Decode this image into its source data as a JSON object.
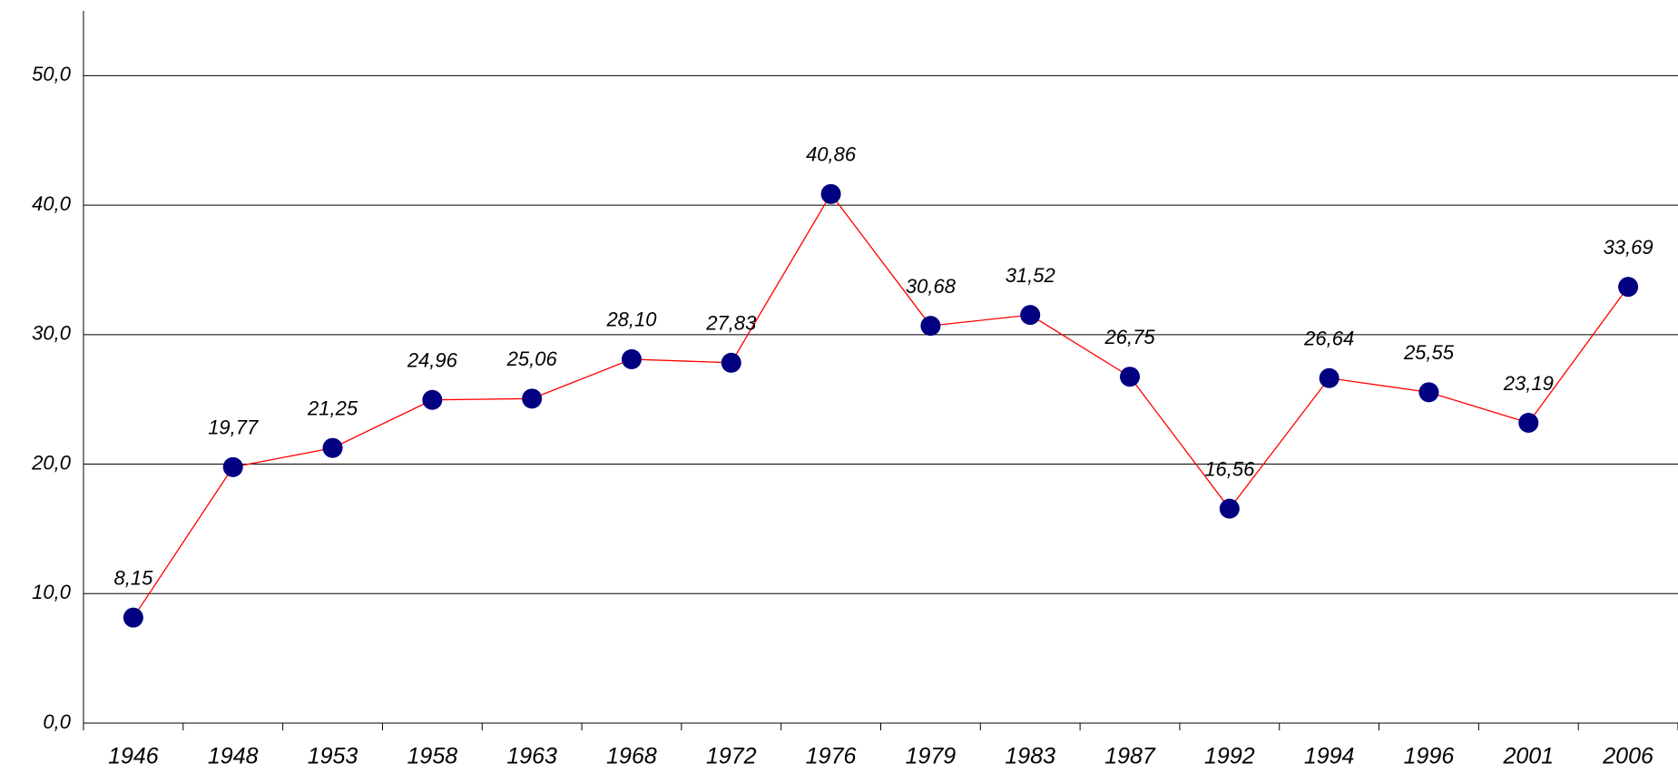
{
  "chart_data": {
    "type": "line",
    "categories": [
      "1946",
      "1948",
      "1953",
      "1958",
      "1963",
      "1968",
      "1972",
      "1976",
      "1979",
      "1983",
      "1987",
      "1992",
      "1994",
      "1996",
      "2001",
      "2006"
    ],
    "values": [
      8.15,
      19.77,
      21.25,
      24.96,
      25.06,
      28.1,
      27.83,
      40.86,
      30.68,
      31.52,
      26.75,
      16.56,
      26.64,
      25.55,
      23.19,
      33.69
    ],
    "value_labels": [
      "8,15",
      "19,77",
      "21,25",
      "24,96",
      "25,06",
      "28,10",
      "27,83",
      "40,86",
      "30,68",
      "31,52",
      "26,75",
      "16,56",
      "26,64",
      "25,55",
      "23,19",
      "33,69"
    ],
    "line_color": "#ff0000",
    "marker_color": "#000080",
    "ylim": [
      0,
      55
    ],
    "yticks": [
      {
        "value": 0,
        "label": "0,0"
      },
      {
        "value": 10,
        "label": "10,0"
      },
      {
        "value": 20,
        "label": "20,0"
      },
      {
        "value": 30,
        "label": "30,0"
      },
      {
        "value": 40,
        "label": "40,0"
      },
      {
        "value": 50,
        "label": "50,0"
      }
    ],
    "grid": true
  }
}
